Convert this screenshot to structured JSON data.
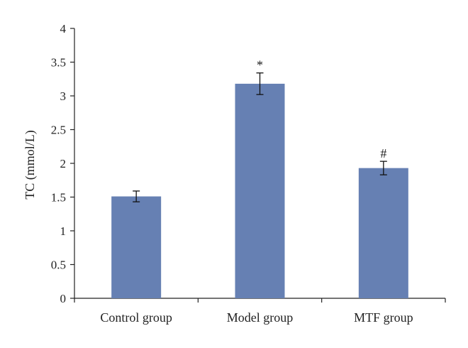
{
  "chart_data": {
    "type": "bar",
    "title": "",
    "xlabel": "",
    "ylabel": "TC (mmol/L)",
    "categories": [
      "Control group",
      "Model group",
      "MTF group"
    ],
    "values": [
      1.51,
      3.18,
      1.93
    ],
    "error": [
      0.08,
      0.16,
      0.1
    ],
    "annotations": [
      "",
      "*",
      "#"
    ],
    "ylim": [
      0,
      4
    ],
    "yticks": [
      "0",
      "0.5",
      "1",
      "1.5",
      "2",
      "2.5",
      "3",
      "3.5",
      "4"
    ],
    "bar_color": "#6680b3",
    "grid": false,
    "legend": "none"
  }
}
